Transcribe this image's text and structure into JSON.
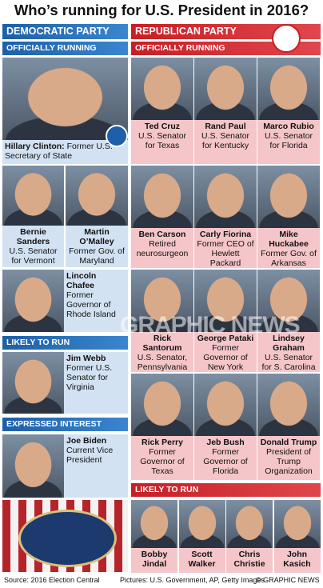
{
  "header": {
    "title": "Who’s running for U.S. President in 2016?"
  },
  "democratic": {
    "party": "DEMOCRATIC PARTY",
    "sections": [
      {
        "heading": "OFFICIALLY RUNNING",
        "candidates": [
          {
            "name": "Hillary Clinton:",
            "description": "Former U.S. Secretary of State"
          },
          {
            "name": "Bernie Sanders",
            "description": "U.S. Senator for Vermont"
          },
          {
            "name": "Martin O’Malley",
            "description": "Former Gov. of Maryland"
          },
          {
            "name": "Lincoln Chafee",
            "description": "Former Governor of Rhode Island"
          }
        ]
      },
      {
        "heading": "LIKELY TO RUN",
        "candidates": [
          {
            "name": "Jim Webb",
            "description": "Former U.S. Senator for Virginia"
          }
        ]
      },
      {
        "heading": "EXPRESSED INTEREST",
        "candidates": [
          {
            "name": "Joe Biden",
            "description": "Current Vice President"
          }
        ]
      }
    ]
  },
  "republican": {
    "party": "REPUBLICAN PARTY",
    "sections": [
      {
        "heading": "OFFICIALLY RUNNING",
        "candidates": [
          {
            "name": "Ted Cruz",
            "description": "U.S. Senator for Texas"
          },
          {
            "name": "Rand Paul",
            "description": "U.S. Senator for Kentucky"
          },
          {
            "name": "Marco Rubio",
            "description": "U.S. Senator for Florida"
          },
          {
            "name": "Ben Carson",
            "description": "Retired neurosurgeon"
          },
          {
            "name": "Carly Fiorina",
            "description": "Former CEO of Hewlett Packard"
          },
          {
            "name": "Mike Huckabee",
            "description": "Former Gov. of Arkansas"
          },
          {
            "name": "Rick Santorum",
            "description": "U.S. Senator, Pennsylvania"
          },
          {
            "name": "George Pataki",
            "description": "Former Governor of New York"
          },
          {
            "name": "Lindsey Graham",
            "description": "U.S. Senator for S. Carolina"
          },
          {
            "name": "Rick Perry",
            "description": "Former Governor of Texas"
          },
          {
            "name": "Jeb Bush",
            "description": "Former Governor of Florida"
          },
          {
            "name": "Donald Trump",
            "description": "President of Trump Organization"
          }
        ]
      },
      {
        "heading": "LIKELY TO RUN",
        "candidates": [
          {
            "name": "Bobby Jindal"
          },
          {
            "name": "Scott Walker"
          },
          {
            "name": "Chris Christie"
          },
          {
            "name": "John Kasich"
          }
        ]
      }
    ]
  },
  "watermark": "GRAPHIC NEWS",
  "footer": {
    "source": "Source: 2016 Election Central",
    "pictures": "Pictures: U.S. Government, AP, Getty Images",
    "credit": "© GRAPHIC NEWS"
  }
}
